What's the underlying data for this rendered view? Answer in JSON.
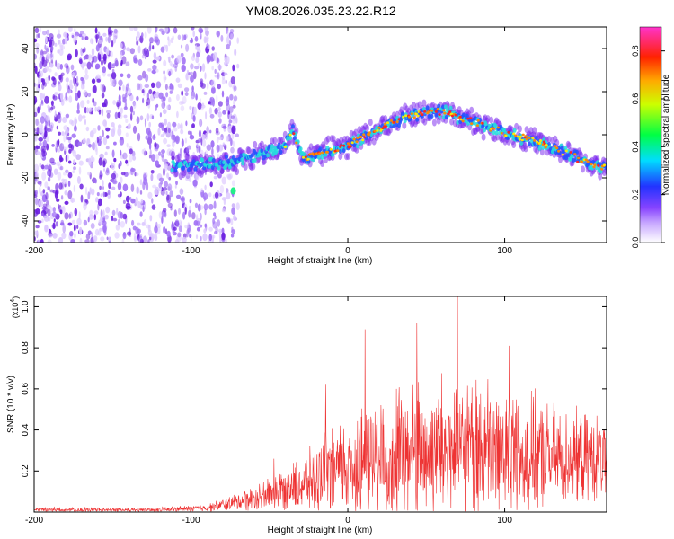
{
  "title": "YM08.2026.035.23.22.R12",
  "colors": {
    "line": "#ee3333",
    "track_low": "#7722ee",
    "track_mid": "#22dddd",
    "track_high": "#ff8800",
    "background_purple": "#8a3cf0"
  },
  "chart_data": [
    {
      "type": "heatmap",
      "xlabel": "Height of straight line (km)",
      "ylabel": "Frequency (Hz)",
      "xlim": [
        -200,
        165
      ],
      "ylim": [
        -50,
        50
      ],
      "xticks": [
        "-200",
        "-100",
        "0",
        "100"
      ],
      "yticks": [
        "40",
        "20",
        "0",
        "-20",
        "-40"
      ],
      "xtick_values": [
        -200,
        -100,
        0,
        100
      ],
      "ytick_values": [
        40,
        20,
        0,
        -20,
        -40
      ],
      "colorbar": {
        "label": "Normalized spectral amplitude",
        "range": [
          0,
          0.9
        ],
        "ticks": [
          "0.0",
          "0.2",
          "0.4",
          "0.6",
          "0.8"
        ],
        "tick_values": [
          0,
          0.2,
          0.4,
          0.6,
          0.8
        ],
        "colormap": [
          "#ffffff",
          "#8844ff",
          "#2233ff",
          "#00ffff",
          "#00ff00",
          "#ffff00",
          "#ff0000",
          "#ff00ff"
        ]
      },
      "track": {
        "x": [
          -110,
          -90,
          -70,
          -55,
          -40,
          -35,
          -28,
          -20,
          0,
          20,
          40,
          60,
          80,
          100,
          120,
          140,
          160
        ],
        "y": [
          -14,
          -14,
          -12,
          -9,
          -5,
          2,
          -11,
          -9,
          -5,
          3,
          9,
          11,
          6,
          1,
          -3,
          -9,
          -15
        ]
      },
      "noise_region": {
        "x_from": -200,
        "x_to": -80
      }
    },
    {
      "type": "line",
      "xlabel": "Height of straight line (km)",
      "ylabel": "SNR (10 * v/v)",
      "scale_label": "(x10",
      "scale_exp": "4",
      "scale_close": ")",
      "xlim": [
        -200,
        165
      ],
      "ylim": [
        0,
        1.05
      ],
      "xticks": [
        "-200",
        "-100",
        "0",
        "100"
      ],
      "yticks": [
        "0.2",
        "0.4",
        "0.6",
        "0.8",
        "1.0"
      ],
      "xtick_values": [
        -200,
        -100,
        0,
        100
      ],
      "ytick_values": [
        0.2,
        0.4,
        0.6,
        0.8,
        1.0
      ],
      "series": [
        {
          "name": "SNR",
          "envelope_x": [
            -200,
            -120,
            -90,
            -70,
            -50,
            -30,
            -10,
            20,
            60,
            100,
            140,
            165
          ],
          "envelope_base": [
            0.01,
            0.01,
            0.02,
            0.05,
            0.09,
            0.13,
            0.2,
            0.28,
            0.3,
            0.3,
            0.26,
            0.26
          ],
          "envelope_spread": [
            0.015,
            0.015,
            0.02,
            0.05,
            0.1,
            0.15,
            0.25,
            0.36,
            0.44,
            0.38,
            0.27,
            0.24
          ],
          "peaks": [
            {
              "x": 70,
              "y": 1.05
            },
            {
              "x": 44,
              "y": 0.92
            },
            {
              "x": 11,
              "y": 0.89
            },
            {
              "x": 103,
              "y": 0.81
            },
            {
              "x": -14,
              "y": 0.62
            },
            {
              "x": -47,
              "y": 0.26
            }
          ]
        }
      ]
    }
  ]
}
